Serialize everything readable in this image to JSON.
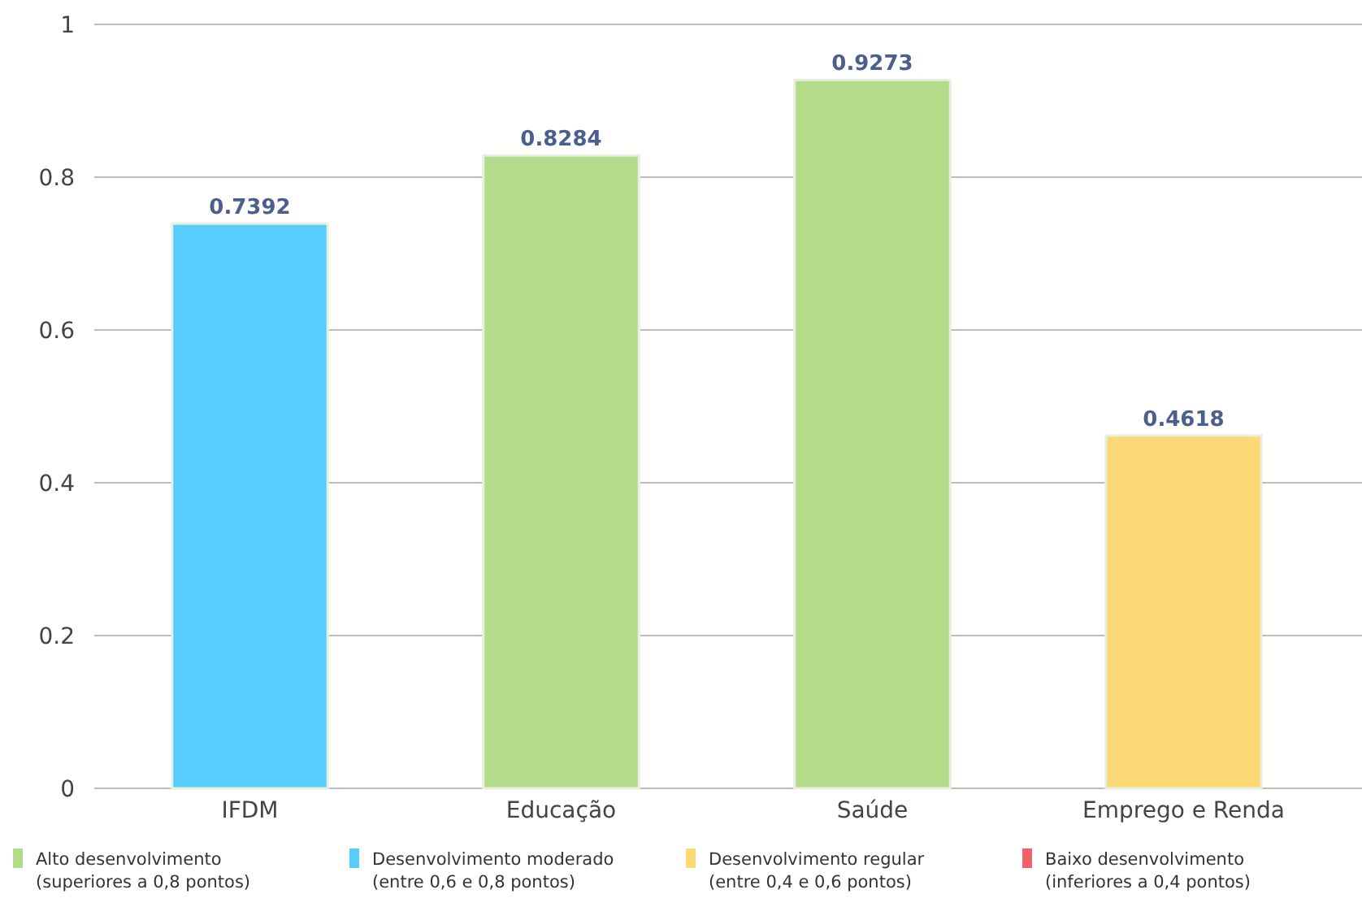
{
  "chart_data": {
    "type": "bar",
    "categories": [
      "IFDM",
      "Educação",
      "Saúde",
      "Emprego e Renda"
    ],
    "series": [
      {
        "name": "Alto desenvolvimento (superiores a 0,8 pontos)",
        "color": "#b3dc8a",
        "values": [
          null,
          0.8284,
          0.9273,
          null
        ]
      },
      {
        "name": "Desenvolvimento moderado (entre 0,6 e 0,8 pontos)",
        "color": "#56cdfc",
        "values": [
          0.7392,
          null,
          null,
          null
        ]
      },
      {
        "name": "Desenvolvimento regular (entre 0,4 e 0,6 pontos)",
        "color": "#fdd976",
        "values": [
          null,
          null,
          null,
          0.4618
        ]
      },
      {
        "name": "Baixo desenvolvimento (inferiores a 0,4 pontos)",
        "color": "#f0616a",
        "values": [
          null,
          null,
          null,
          null
        ]
      }
    ],
    "ylim": [
      0,
      1
    ],
    "yticks": [
      0,
      0.2,
      0.4,
      0.6,
      0.8,
      1
    ],
    "grid": "y",
    "data_labels": true,
    "legend": "bottom"
  }
}
